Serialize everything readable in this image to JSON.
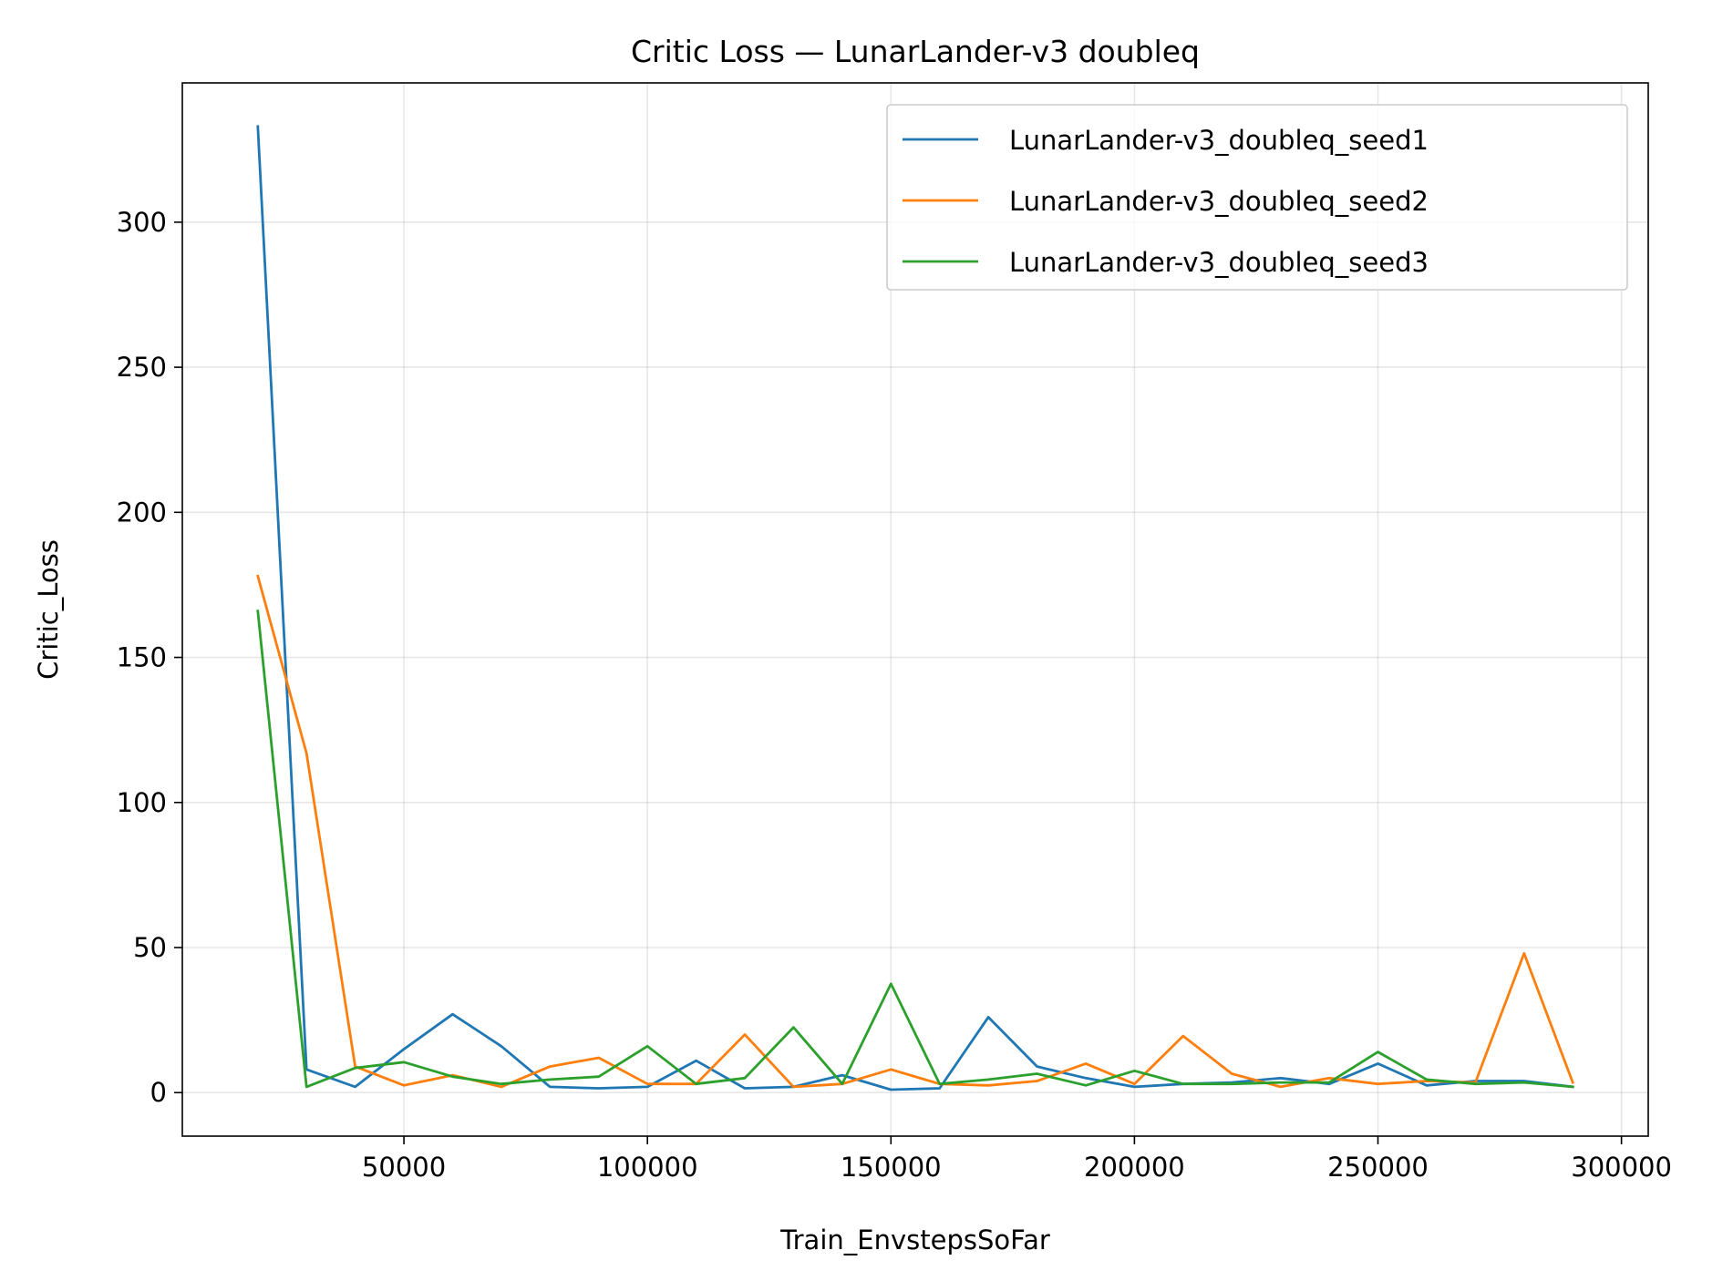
{
  "chart_data": {
    "type": "line",
    "title": "Critic Loss — LunarLander-v3 doubleq",
    "xlabel": "Train_EnvstepsSoFar",
    "ylabel": "Critic_Loss",
    "xlim": [
      4500,
      305500
    ],
    "ylim": [
      -15,
      348
    ],
    "xticks": [
      50000,
      100000,
      150000,
      200000,
      250000,
      300000
    ],
    "xtick_labels": [
      "50000",
      "100000",
      "150000",
      "200000",
      "250000",
      "300000"
    ],
    "yticks": [
      0,
      50,
      100,
      150,
      200,
      250,
      300
    ],
    "ytick_labels": [
      "0",
      "50",
      "100",
      "150",
      "200",
      "250",
      "300"
    ],
    "grid": true,
    "legend_position": "upper right",
    "x": [
      20000,
      30000,
      40000,
      50000,
      60000,
      70000,
      80000,
      90000,
      100000,
      110000,
      120000,
      130000,
      140000,
      150000,
      160000,
      170000,
      180000,
      190000,
      200000,
      210000,
      220000,
      230000,
      240000,
      250000,
      260000,
      270000,
      280000,
      290000
    ],
    "series": [
      {
        "name": "LunarLander-v3_doubleq_seed1",
        "color": "#1f77b4",
        "values": [
          333,
          8,
          2,
          15,
          27,
          16,
          2,
          1.5,
          2,
          11,
          1.5,
          2,
          6,
          1,
          1.5,
          26,
          9,
          5,
          2,
          3,
          3.5,
          5,
          3,
          10,
          2.5,
          4,
          4,
          2
        ]
      },
      {
        "name": "LunarLander-v3_doubleq_seed2",
        "color": "#ff7f0e",
        "values": [
          178,
          117,
          9,
          2.5,
          6,
          2,
          9,
          12,
          3,
          3,
          20,
          2,
          3,
          8,
          3,
          2.5,
          4,
          10,
          3,
          19.5,
          6.5,
          2,
          5,
          3,
          4,
          3.5,
          48,
          3.5
        ]
      },
      {
        "name": "LunarLander-v3_doubleq_seed3",
        "color": "#2ca02c",
        "values": [
          166,
          2,
          8.5,
          10.5,
          5.5,
          3,
          4.5,
          5.5,
          16,
          3,
          5,
          22.5,
          3,
          37.5,
          3,
          4.5,
          6.5,
          2.5,
          7.5,
          3,
          3,
          3.5,
          3.5,
          14,
          4.5,
          3,
          3.5,
          2
        ]
      }
    ]
  }
}
